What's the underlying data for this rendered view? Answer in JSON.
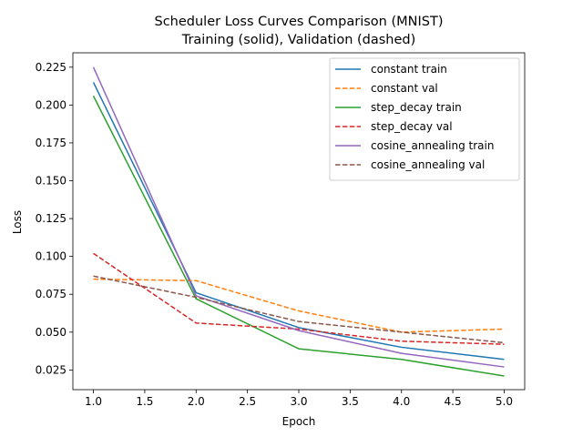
{
  "chart_data": {
    "type": "line",
    "title": "Scheduler Loss Curves Comparison (MNIST)",
    "subtitle": "Training (solid), Validation (dashed)",
    "xlabel": "Epoch",
    "ylabel": "Loss",
    "xlim": [
      0.8,
      5.2
    ],
    "ylim": [
      0.012,
      0.2345
    ],
    "xticks": [
      "1.0",
      "1.5",
      "2.0",
      "2.5",
      "3.0",
      "3.5",
      "4.0",
      "4.5",
      "5.0"
    ],
    "yticks": [
      "0.025",
      "0.050",
      "0.075",
      "0.100",
      "0.125",
      "0.150",
      "0.175",
      "0.200",
      "0.225"
    ],
    "grid": false,
    "legend_position": "top-right",
    "x": [
      1,
      2,
      3,
      4,
      5
    ],
    "series": [
      {
        "name": "constant train",
        "values": [
          0.215,
          0.076,
          0.053,
          0.04,
          0.032
        ],
        "color": "#1f77b4",
        "style": "solid"
      },
      {
        "name": "constant val",
        "values": [
          0.085,
          0.084,
          0.064,
          0.05,
          0.052
        ],
        "color": "#ff7f0e",
        "style": "dashed"
      },
      {
        "name": "step_decay train",
        "values": [
          0.206,
          0.072,
          0.039,
          0.032,
          0.021
        ],
        "color": "#2ca02c",
        "style": "solid"
      },
      {
        "name": "step_decay val",
        "values": [
          0.102,
          0.056,
          0.052,
          0.044,
          0.042
        ],
        "color": "#d62728",
        "style": "dashed"
      },
      {
        "name": "cosine_annealing train",
        "values": [
          0.225,
          0.074,
          0.051,
          0.036,
          0.027
        ],
        "color": "#9467bd",
        "style": "solid"
      },
      {
        "name": "cosine_annealing val",
        "values": [
          0.087,
          0.073,
          0.057,
          0.05,
          0.043
        ],
        "color": "#8c564b",
        "style": "dashed"
      }
    ]
  }
}
